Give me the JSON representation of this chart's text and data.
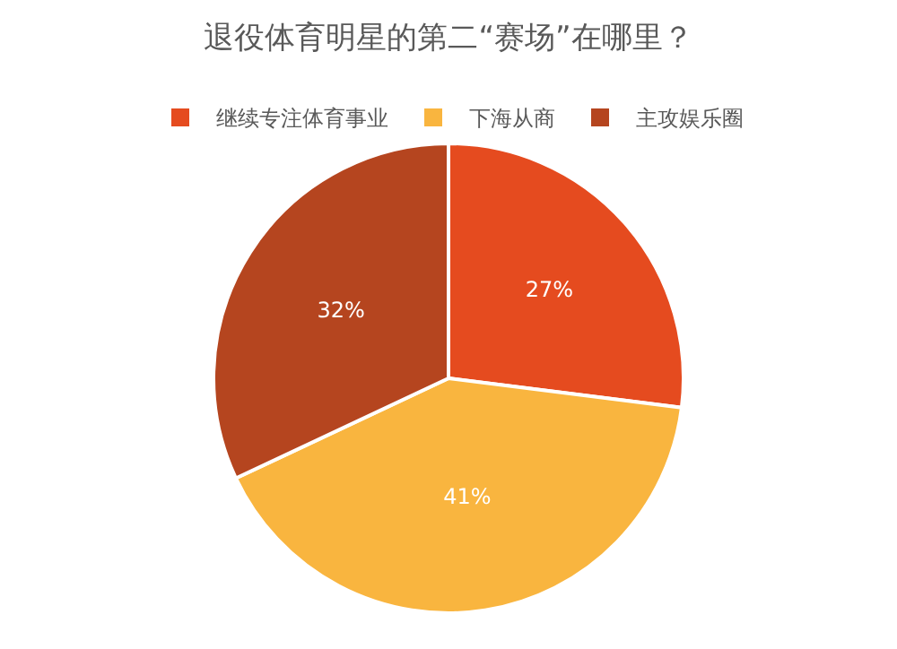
{
  "chart_data": {
    "type": "pie",
    "title": "退役体育明星的第二“赛场”在哪里？",
    "categories": [
      "继续专注体育事业",
      "下海从商",
      "主攻娱乐圈"
    ],
    "values": [
      27,
      41,
      32
    ],
    "colors": [
      "#e54b1f",
      "#f9b53f",
      "#b5451f"
    ],
    "value_labels": [
      "27%",
      "41%",
      "32%"
    ],
    "legend": "top"
  }
}
